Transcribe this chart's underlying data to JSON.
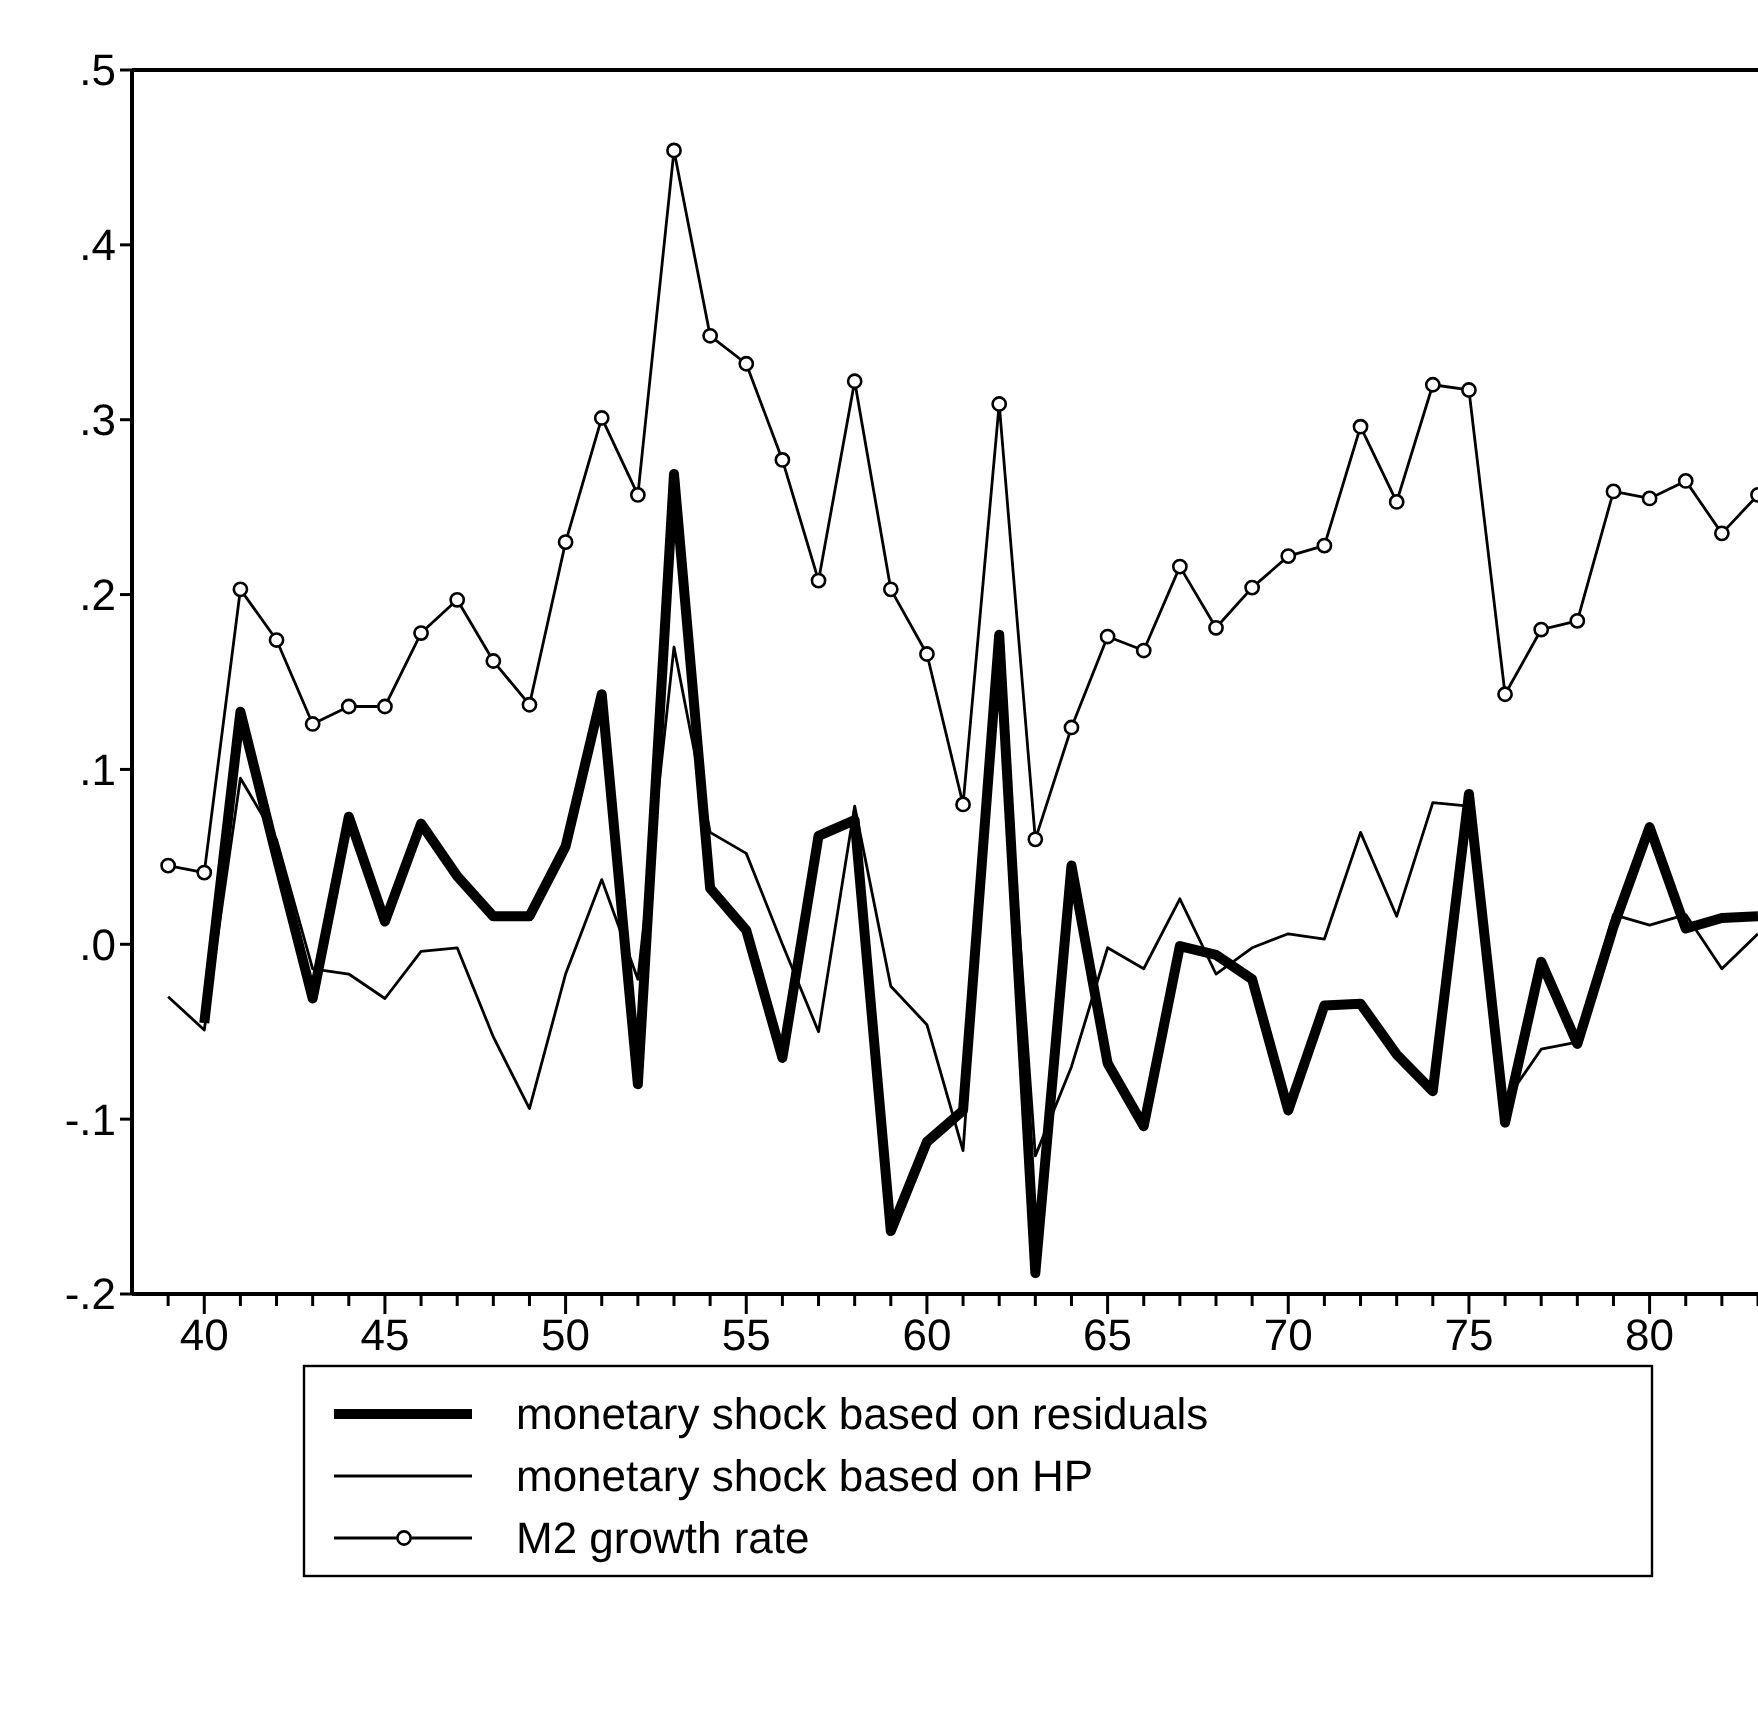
{
  "chart_data": {
    "type": "line",
    "x": [
      39,
      40,
      41,
      42,
      43,
      44,
      45,
      46,
      47,
      48,
      49,
      50,
      51,
      52,
      53,
      54,
      55,
      56,
      57,
      58,
      59,
      60,
      61,
      62,
      63,
      64,
      65,
      66,
      67,
      68,
      69,
      70,
      71,
      72,
      73,
      74,
      75,
      76,
      77,
      78,
      79,
      80,
      81,
      82,
      83
    ],
    "xlim": [
      38,
      83
    ],
    "xticks": [
      {
        "value": 39,
        "label": null
      },
      40,
      {
        "value": 41,
        "label": null
      },
      {
        "value": 42,
        "label": null
      },
      {
        "value": 43,
        "label": null
      },
      {
        "value": 44,
        "label": null
      },
      45,
      {
        "value": 46,
        "label": null
      },
      {
        "value": 47,
        "label": null
      },
      {
        "value": 48,
        "label": null
      },
      {
        "value": 49,
        "label": null
      },
      50,
      {
        "value": 51,
        "label": null
      },
      {
        "value": 52,
        "label": null
      },
      {
        "value": 53,
        "label": null
      },
      {
        "value": 54,
        "label": null
      },
      55,
      {
        "value": 56,
        "label": null
      },
      {
        "value": 57,
        "label": null
      },
      {
        "value": 58,
        "label": null
      },
      {
        "value": 59,
        "label": null
      },
      60,
      {
        "value": 61,
        "label": null
      },
      {
        "value": 62,
        "label": null
      },
      {
        "value": 63,
        "label": null
      },
      {
        "value": 64,
        "label": null
      },
      65,
      {
        "value": 66,
        "label": null
      },
      {
        "value": 67,
        "label": null
      },
      {
        "value": 68,
        "label": null
      },
      {
        "value": 69,
        "label": null
      },
      70,
      {
        "value": 71,
        "label": null
      },
      {
        "value": 72,
        "label": null
      },
      {
        "value": 73,
        "label": null
      },
      {
        "value": 74,
        "label": null
      },
      75,
      {
        "value": 76,
        "label": null
      },
      {
        "value": 77,
        "label": null
      },
      {
        "value": 78,
        "label": null
      },
      {
        "value": 79,
        "label": null
      },
      80,
      {
        "value": 81,
        "label": null
      },
      {
        "value": 82,
        "label": null
      },
      {
        "value": 83,
        "label": null
      }
    ],
    "ylim": [
      -0.2,
      0.5
    ],
    "yticks": [
      {
        "value": -0.2,
        "label": "-.2"
      },
      {
        "value": -0.1,
        "label": "-.1"
      },
      {
        "value": 0,
        "label": ".0"
      },
      {
        "value": 0.1,
        "label": ".1"
      },
      {
        "value": 0.2,
        "label": ".2"
      },
      {
        "value": 0.3,
        "label": ".3"
      },
      {
        "value": 0.4,
        "label": ".4"
      },
      {
        "value": 0.5,
        "label": ".5"
      }
    ],
    "grid": false,
    "legend": "bottom",
    "series": [
      {
        "name": "monetary shock based on residuals",
        "color": "#000000",
        "marker": "none",
        "values": [
          null,
          -0.045,
          0.133,
          0.05,
          -0.031,
          0.073,
          0.013,
          0.069,
          0.039,
          0.016,
          0.016,
          0.056,
          0.143,
          -0.08,
          0.269,
          0.032,
          0.008,
          -0.065,
          0.062,
          0.071,
          -0.164,
          -0.113,
          -0.095,
          0.177,
          -0.188,
          0.045,
          -0.068,
          -0.104,
          -0.001,
          -0.006,
          -0.02,
          -0.095,
          -0.035,
          -0.034,
          -0.063,
          -0.084,
          0.086,
          -0.102,
          -0.01,
          -0.057,
          0.01,
          0.067,
          0.009,
          0.015,
          0.016
        ]
      },
      {
        "name": "monetary shock based on HP",
        "color": "#000000",
        "marker": "none",
        "values": [
          -0.03,
          -0.049,
          0.095,
          0.06,
          -0.014,
          -0.017,
          -0.031,
          -0.004,
          -0.002,
          -0.053,
          -0.094,
          -0.017,
          0.037,
          -0.02,
          0.17,
          0.064,
          0.052,
          0.0,
          -0.05,
          0.079,
          -0.024,
          -0.046,
          -0.118,
          0.17,
          -0.121,
          -0.07,
          -0.002,
          -0.014,
          0.026,
          -0.017,
          -0.002,
          0.006,
          0.003,
          0.064,
          0.016,
          0.081,
          0.079,
          -0.09,
          -0.06,
          -0.056,
          0.017,
          0.011,
          0.017,
          -0.014,
          0.006
        ]
      },
      {
        "name": "M2 growth rate",
        "color": "#000000",
        "marker": "circle",
        "values": [
          0.045,
          0.041,
          0.203,
          0.174,
          0.126,
          0.136,
          0.136,
          0.178,
          0.197,
          0.162,
          0.137,
          0.23,
          0.301,
          0.257,
          0.454,
          0.348,
          0.332,
          0.277,
          0.208,
          0.322,
          0.203,
          0.166,
          0.08,
          0.309,
          0.06,
          0.124,
          0.176,
          0.168,
          0.216,
          0.181,
          0.204,
          0.222,
          0.228,
          0.296,
          0.253,
          0.32,
          0.317,
          0.143,
          0.18,
          0.185,
          0.259,
          0.255,
          0.265,
          0.235,
          0.257
        ]
      }
    ]
  }
}
